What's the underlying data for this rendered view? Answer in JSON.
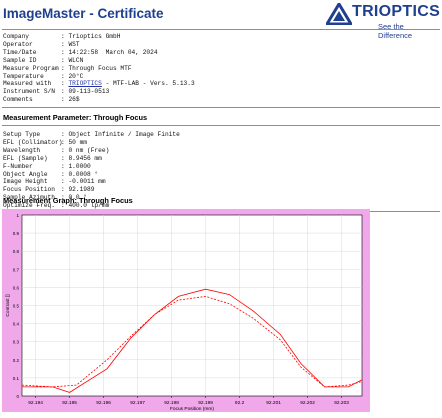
{
  "header": {
    "title": "ImageMaster - Certificate",
    "logo_name": "TRIOPTICS",
    "logo_tagline": "See the Difference"
  },
  "info": [
    {
      "key": "Company",
      "value": "Trioptics GmbH"
    },
    {
      "key": "Operator",
      "value": "WST"
    },
    {
      "key": "Time/Date",
      "value": "14:22:58  March 04, 2024"
    },
    {
      "key": "Sample ID",
      "value": "WLCN"
    },
    {
      "key": "Measure Program",
      "value": "Through Focus MTF"
    },
    {
      "key": "Temperature",
      "value": "20°C"
    },
    {
      "key": "Measured with",
      "value_link": "TRIOPTICS",
      "value": " - MTF-LAB - Vers. 5.13.3"
    },
    {
      "key": "Instrument S/N",
      "value": "09-113-0513"
    },
    {
      "key": "Comments",
      "value": "26$"
    }
  ],
  "params_title": "Measurement Parameter: Through Focus",
  "params": [
    {
      "key": "Setup Type",
      "value": "Object Infinite / Image Finite"
    },
    {
      "key": "EFL (Collimator)",
      "value": "50 mm"
    },
    {
      "key": "Wavelength",
      "value": "0 nm (Free)"
    },
    {
      "key": "EFL (Sample)",
      "value": "8.9456 mm"
    },
    {
      "key": "F-Number",
      "value": "1.0000"
    },
    {
      "key": "Object Angle",
      "value": "0.0008 °"
    },
    {
      "key": "Image Height",
      "value": "-0.0011 mm"
    },
    {
      "key": "Focus Position",
      "value": "92.1989"
    },
    {
      "key": "Sample Azimuth",
      "value": "0.0 °"
    },
    {
      "key": "Optimize Freq.",
      "value": "400.0 lp/mm"
    }
  ],
  "graph_title": "Measurement Graph: Through Focus",
  "colors": {
    "frame": "#f0a8ea",
    "series": "#ff0000",
    "grid": "#d8d8d8"
  },
  "chart_data": {
    "type": "line",
    "xlabel": "Focus Position (mm)",
    "ylabel": "Contrast []",
    "xlim": [
      92.1936,
      92.2036
    ],
    "ylim": [
      0,
      1
    ],
    "xticks": [
      "92.194",
      "92.195",
      "92.196",
      "92.197",
      "92.198",
      "92.199",
      "92.2",
      "92.201",
      "92.202",
      "92.203"
    ],
    "yticks": [
      "0",
      "0.1",
      "0.2",
      "0.3",
      "0.4",
      "0.5",
      "0.6",
      "0.7",
      "0.8",
      "0.9",
      "1"
    ],
    "grid": true,
    "series": [
      {
        "style": "solid",
        "x": [
          92.1936,
          92.1945,
          92.195,
          92.1961,
          92.1968,
          92.1975,
          92.1982,
          92.199,
          92.1997,
          92.2004,
          92.2012,
          92.2018,
          92.2025,
          92.2032,
          92.2036
        ],
        "y": [
          0.05,
          0.05,
          0.02,
          0.15,
          0.32,
          0.45,
          0.55,
          0.59,
          0.56,
          0.47,
          0.34,
          0.18,
          0.05,
          0.05,
          0.09
        ]
      },
      {
        "style": "dashed",
        "x": [
          92.1936,
          92.1945,
          92.1952,
          92.1961,
          92.1968,
          92.1975,
          92.1982,
          92.199,
          92.1997,
          92.2004,
          92.2012,
          92.2018,
          92.2025,
          92.2032,
          92.2036
        ],
        "y": [
          0.06,
          0.05,
          0.06,
          0.2,
          0.33,
          0.45,
          0.53,
          0.55,
          0.51,
          0.43,
          0.31,
          0.16,
          0.05,
          0.06,
          0.08
        ]
      }
    ]
  }
}
